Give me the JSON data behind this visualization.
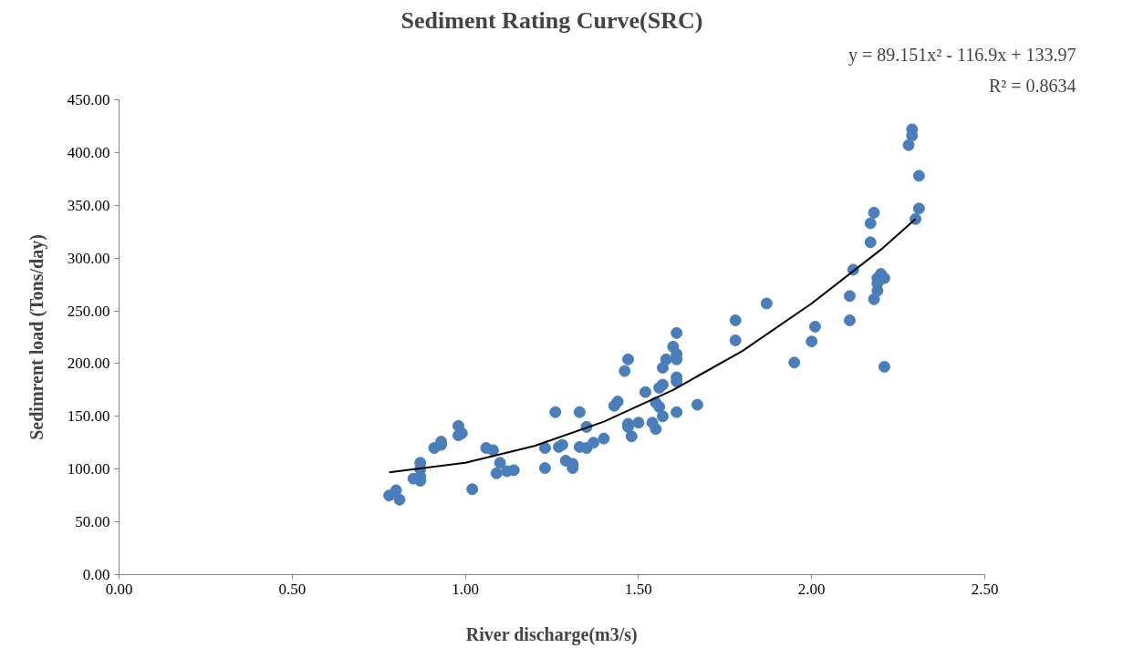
{
  "chart_data": {
    "type": "scatter",
    "title": "Sediment Rating Curve(SRC)",
    "xlabel": "River discharge(m3/s)",
    "ylabel": "Sedimrent load (Tons/day)",
    "annotations": [
      "y = 89.151x² - 116.9x + 133.97",
      "R² = 0.8634"
    ],
    "xlim": [
      0,
      2.5
    ],
    "ylim": [
      0,
      450
    ],
    "xticks": [
      {
        "value": 0,
        "label": "0.00"
      },
      {
        "value": 0.5,
        "label": "0.50"
      },
      {
        "value": 1,
        "label": "1.00"
      },
      {
        "value": 1.5,
        "label": "1.50"
      },
      {
        "value": 2,
        "label": "2.00"
      },
      {
        "value": 2.5,
        "label": "2.50"
      }
    ],
    "yticks": [
      {
        "value": 0,
        "label": "0.00"
      },
      {
        "value": 50,
        "label": "50.00"
      },
      {
        "value": 100,
        "label": "100.00"
      },
      {
        "value": 150,
        "label": "150.00"
      },
      {
        "value": 200,
        "label": "200.00"
      },
      {
        "value": 250,
        "label": "250.00"
      },
      {
        "value": 300,
        "label": "300.00"
      },
      {
        "value": 350,
        "label": "350.00"
      },
      {
        "value": 400,
        "label": "400.00"
      },
      {
        "value": 450,
        "label": "450.00"
      }
    ],
    "grid": false,
    "series": [
      {
        "color": "#4a7ebb",
        "marker": "circle",
        "x": [
          0.78,
          0.8,
          0.81,
          0.85,
          0.87,
          0.87,
          0.87,
          0.87,
          0.91,
          0.93,
          0.93,
          0.98,
          0.98,
          0.99,
          1.02,
          1.06,
          1.08,
          1.1,
          1.09,
          1.12,
          1.14,
          1.23,
          1.23,
          1.26,
          1.27,
          1.28,
          1.29,
          1.31,
          1.31,
          1.33,
          1.33,
          1.35,
          1.35,
          1.37,
          1.4,
          1.43,
          1.44,
          1.46,
          1.47,
          1.47,
          1.47,
          1.48,
          1.5,
          1.52,
          1.54,
          1.55,
          1.55,
          1.56,
          1.56,
          1.57,
          1.57,
          1.57,
          1.58,
          1.6,
          1.61,
          1.61,
          1.61,
          1.61,
          1.61,
          1.61,
          1.67,
          1.78,
          1.78,
          1.87,
          1.95,
          2.0,
          2.01,
          2.11,
          2.11,
          2.12,
          2.17,
          2.17,
          2.18,
          2.2,
          2.19,
          2.21,
          2.19,
          2.19,
          2.18,
          2.21,
          2.28,
          2.29,
          2.29,
          2.31,
          2.31,
          2.3
        ],
        "values": [
          75,
          80,
          71,
          91,
          93,
          100,
          106,
          89,
          120,
          123,
          126,
          141,
          132,
          134,
          81,
          120,
          118,
          106,
          96,
          98,
          99,
          101,
          120,
          154,
          121,
          123,
          108,
          105,
          101,
          154,
          121,
          120,
          140,
          125,
          129,
          160,
          164,
          193,
          204,
          143,
          140,
          131,
          144,
          173,
          144,
          138,
          163,
          159,
          177,
          196,
          180,
          150,
          204,
          216,
          183,
          187,
          229,
          209,
          204,
          154,
          161,
          241,
          222,
          257,
          201,
          221,
          235,
          241,
          264,
          289,
          315,
          333,
          343,
          285,
          281,
          281,
          276,
          269,
          261,
          197,
          407,
          416,
          422,
          378,
          347,
          337
        ]
      },
      {
        "type": "line",
        "color": "#000000",
        "marker": "none",
        "x": [
          0.78,
          1.0,
          1.2,
          1.4,
          1.6,
          1.8,
          2.0,
          2.2,
          2.3
        ],
        "values": [
          97,
          106,
          122,
          145,
          175,
          212,
          257,
          308,
          337
        ]
      }
    ]
  }
}
